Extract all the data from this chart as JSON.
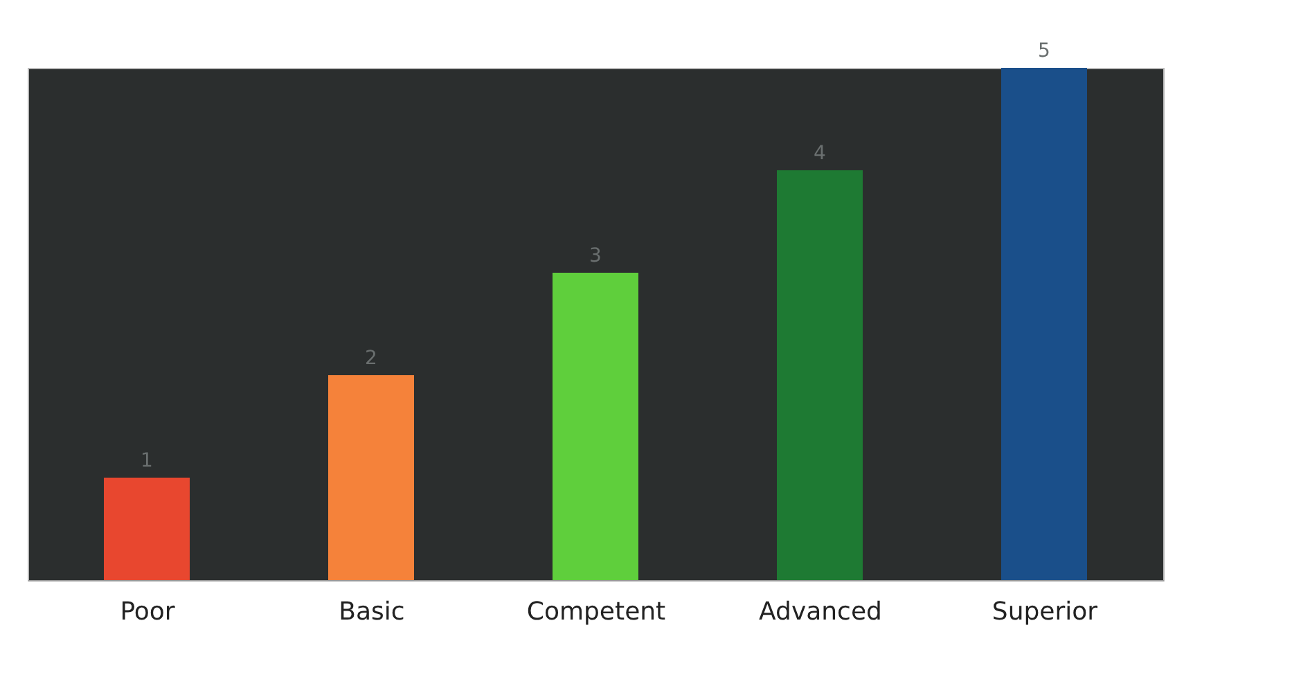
{
  "chart_data": {
    "type": "bar",
    "categories": [
      "Poor",
      "Basic",
      "Competent",
      "Advanced",
      "Superior"
    ],
    "values": [
      1,
      2,
      3,
      4,
      5
    ],
    "colors": [
      "#e8472f",
      "#f5823a",
      "#5fcf3c",
      "#1e7a33",
      "#1a4f8a"
    ],
    "data_labels": true,
    "grid": false,
    "tick_labels": "x"
  }
}
